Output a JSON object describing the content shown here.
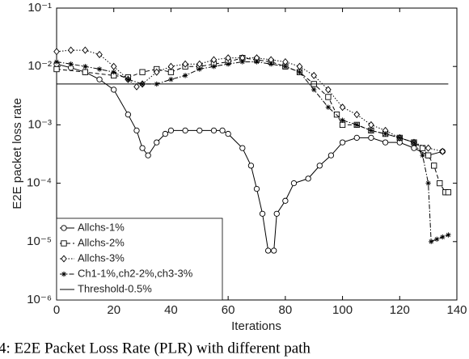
{
  "chart_data": {
    "type": "line",
    "ylabel": "E2E packet loss rate",
    "xlabel": "Iterations",
    "caption": "4: E2E Packet Loss Rate (PLR) with different path",
    "xlim": [
      0,
      140
    ],
    "xticks": [
      0,
      20,
      40,
      60,
      80,
      100,
      120,
      140
    ],
    "ylim": [
      1e-06,
      0.1
    ],
    "yticks": [
      {
        "value": 1e-06,
        "label": "10⁻⁶"
      },
      {
        "value": 1e-05,
        "label": "10⁻⁵"
      },
      {
        "value": 0.0001,
        "label": "10⁻⁴"
      },
      {
        "value": 0.001,
        "label": "10⁻³"
      },
      {
        "value": 0.01,
        "label": "10⁻²"
      },
      {
        "value": 0.1,
        "label": "10⁻¹"
      }
    ],
    "log_y": true,
    "grid": false,
    "legend": "lower left",
    "series": [
      {
        "name": "Allchs-1%",
        "color": "#000000",
        "marker": "circle",
        "linestyle": "solid",
        "x": [
          0,
          5,
          10,
          15,
          20,
          25,
          28,
          30,
          32,
          35,
          38,
          40,
          45,
          50,
          55,
          58,
          60,
          65,
          68,
          70,
          72,
          74,
          76,
          77,
          80,
          83,
          88,
          92,
          96,
          100,
          105,
          110,
          115,
          120,
          125,
          130,
          135
        ],
        "values": [
          0.011,
          0.0095,
          0.008,
          0.006,
          0.004,
          0.0015,
          0.0008,
          0.0004,
          0.0003,
          0.0005,
          0.0007,
          0.0008,
          0.0008,
          0.0008,
          0.0008,
          0.0008,
          0.0007,
          0.0004,
          0.0002,
          8e-05,
          3e-05,
          7e-06,
          7e-06,
          3e-05,
          5e-05,
          0.0001,
          0.00012,
          0.0002,
          0.0003,
          0.0005,
          0.0006,
          0.0006,
          0.0005,
          0.0005,
          0.0004,
          0.0003,
          0.00035
        ]
      },
      {
        "name": "Allchs-2%",
        "color": "#000000",
        "marker": "square",
        "linestyle": "dashed",
        "x": [
          0,
          10,
          20,
          25,
          30,
          35,
          40,
          45,
          50,
          55,
          60,
          65,
          70,
          75,
          80,
          85,
          90,
          95,
          98,
          100,
          105,
          110,
          115,
          120,
          125,
          128,
          130,
          132,
          134,
          136,
          137
        ],
        "values": [
          0.009,
          0.008,
          0.007,
          0.0065,
          0.008,
          0.009,
          0.008,
          0.01,
          0.01,
          0.011,
          0.012,
          0.014,
          0.013,
          0.012,
          0.01,
          0.008,
          0.005,
          0.003,
          0.0015,
          0.001,
          0.001,
          0.0008,
          0.0007,
          0.0006,
          0.0005,
          0.0004,
          0.0003,
          0.0002,
          0.0001,
          7e-05,
          7e-05
        ]
      },
      {
        "name": "Allchs-3%",
        "color": "#000000",
        "marker": "diamond",
        "linestyle": "dotted",
        "x": [
          0,
          5,
          10,
          15,
          20,
          25,
          28,
          30,
          35,
          40,
          45,
          50,
          55,
          60,
          65,
          70,
          75,
          80,
          85,
          90,
          95,
          100,
          105,
          110,
          115,
          120,
          125,
          130,
          135
        ],
        "values": [
          0.018,
          0.019,
          0.019,
          0.016,
          0.01,
          0.006,
          0.0045,
          0.005,
          0.008,
          0.01,
          0.011,
          0.011,
          0.013,
          0.014,
          0.014,
          0.014,
          0.013,
          0.012,
          0.01,
          0.007,
          0.004,
          0.002,
          0.0015,
          0.001,
          0.0008,
          0.0006,
          0.0005,
          0.0004,
          0.00035
        ]
      },
      {
        "name": "Ch1-1%,ch2-2%,ch3-3%",
        "color": "#000000",
        "marker": "star",
        "linestyle": "dashdot",
        "x": [
          0,
          5,
          10,
          15,
          20,
          25,
          30,
          35,
          40,
          45,
          50,
          55,
          60,
          65,
          70,
          75,
          80,
          85,
          90,
          95,
          100,
          105,
          110,
          115,
          120,
          125,
          128,
          130,
          131,
          133,
          135,
          137
        ],
        "values": [
          0.012,
          0.011,
          0.01,
          0.009,
          0.008,
          0.006,
          0.005,
          0.005,
          0.006,
          0.007,
          0.009,
          0.01,
          0.011,
          0.012,
          0.012,
          0.011,
          0.01,
          0.008,
          0.004,
          0.002,
          0.0012,
          0.001,
          0.0008,
          0.0007,
          0.0006,
          0.0005,
          0.0003,
          0.0001,
          1e-05,
          1.1e-05,
          1.2e-05,
          1.3e-05
        ]
      },
      {
        "name": "Threshold-0.5%",
        "color": "#000000",
        "marker": "none",
        "linestyle": "solid",
        "x": [
          0,
          137
        ],
        "values": [
          0.005,
          0.005
        ]
      }
    ]
  }
}
